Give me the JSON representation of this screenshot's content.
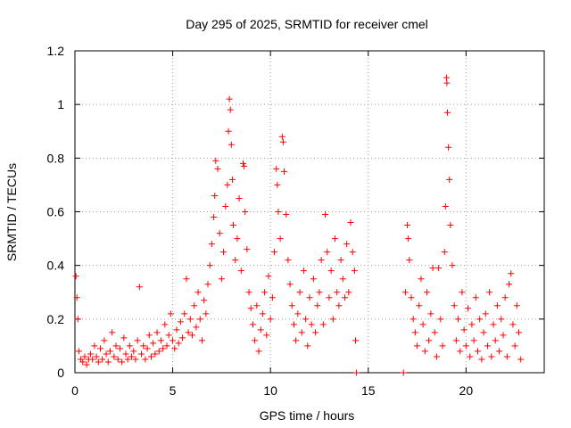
{
  "chart_data": {
    "type": "scatter",
    "title": "Day 295 of 2025, SRMTID for receiver cmel",
    "xlabel": "GPS time / hours",
    "ylabel": "SRMTID / TECUs",
    "xlim": [
      0,
      24
    ],
    "ylim": [
      0,
      1.2
    ],
    "x_ticks": [
      "0",
      "5",
      "10",
      "15",
      "20"
    ],
    "y_ticks": [
      "0",
      "0.2",
      "0.4",
      "0.6",
      "0.8",
      "1",
      "1.2"
    ],
    "grid": true,
    "marker": "+",
    "color": "#ff0000",
    "series": [
      {
        "name": "SRMTID",
        "points": [
          [
            0.05,
            0.36
          ],
          [
            0.1,
            0.28
          ],
          [
            0.15,
            0.2
          ],
          [
            0.2,
            0.08
          ],
          [
            0.3,
            0.05
          ],
          [
            0.4,
            0.04
          ],
          [
            0.5,
            0.06
          ],
          [
            0.6,
            0.03
          ],
          [
            0.7,
            0.05
          ],
          [
            0.8,
            0.07
          ],
          [
            0.9,
            0.05
          ],
          [
            1.0,
            0.1
          ],
          [
            1.1,
            0.06
          ],
          [
            1.2,
            0.04
          ],
          [
            1.3,
            0.09
          ],
          [
            1.4,
            0.05
          ],
          [
            1.5,
            0.12
          ],
          [
            1.6,
            0.07
          ],
          [
            1.7,
            0.04
          ],
          [
            1.8,
            0.08
          ],
          [
            1.9,
            0.15
          ],
          [
            2.0,
            0.06
          ],
          [
            2.1,
            0.1
          ],
          [
            2.2,
            0.05
          ],
          [
            2.3,
            0.09
          ],
          [
            2.4,
            0.04
          ],
          [
            2.5,
            0.13
          ],
          [
            2.6,
            0.07
          ],
          [
            2.7,
            0.05
          ],
          [
            2.8,
            0.1
          ],
          [
            2.9,
            0.06
          ],
          [
            3.0,
            0.08
          ],
          [
            3.1,
            0.05
          ],
          [
            3.2,
            0.12
          ],
          [
            3.3,
            0.32
          ],
          [
            3.4,
            0.07
          ],
          [
            3.5,
            0.1
          ],
          [
            3.6,
            0.05
          ],
          [
            3.7,
            0.09
          ],
          [
            3.8,
            0.14
          ],
          [
            3.9,
            0.06
          ],
          [
            4.0,
            0.11
          ],
          [
            4.1,
            0.07
          ],
          [
            4.2,
            0.15
          ],
          [
            4.3,
            0.08
          ],
          [
            4.4,
            0.12
          ],
          [
            4.5,
            0.09
          ],
          [
            4.6,
            0.18
          ],
          [
            4.7,
            0.1
          ],
          [
            4.8,
            0.14
          ],
          [
            4.9,
            0.22
          ],
          [
            5.0,
            0.12
          ],
          [
            5.1,
            0.09
          ],
          [
            5.2,
            0.16
          ],
          [
            5.3,
            0.11
          ],
          [
            5.4,
            0.19
          ],
          [
            5.5,
            0.13
          ],
          [
            5.6,
            0.22
          ],
          [
            5.7,
            0.35
          ],
          [
            5.8,
            0.15
          ],
          [
            5.9,
            0.2
          ],
          [
            6.0,
            0.14
          ],
          [
            6.1,
            0.25
          ],
          [
            6.2,
            0.17
          ],
          [
            6.3,
            0.3
          ],
          [
            6.4,
            0.2
          ],
          [
            6.5,
            0.12
          ],
          [
            6.6,
            0.27
          ],
          [
            6.7,
            0.22
          ],
          [
            6.8,
            0.33
          ],
          [
            6.9,
            0.4
          ],
          [
            7.0,
            0.48
          ],
          [
            7.1,
            0.58
          ],
          [
            7.15,
            0.66
          ],
          [
            7.2,
            0.79
          ],
          [
            7.3,
            0.76
          ],
          [
            7.4,
            0.52
          ],
          [
            7.5,
            0.35
          ],
          [
            7.6,
            0.45
          ],
          [
            7.7,
            0.62
          ],
          [
            7.8,
            0.7
          ],
          [
            7.85,
            0.9
          ],
          [
            7.9,
            1.02
          ],
          [
            7.95,
            0.98
          ],
          [
            8.0,
            0.85
          ],
          [
            8.05,
            0.72
          ],
          [
            8.1,
            0.55
          ],
          [
            8.2,
            0.42
          ],
          [
            8.3,
            0.5
          ],
          [
            8.4,
            0.65
          ],
          [
            8.5,
            0.38
          ],
          [
            8.6,
            0.78
          ],
          [
            8.65,
            0.77
          ],
          [
            8.7,
            0.6
          ],
          [
            8.8,
            0.46
          ],
          [
            8.9,
            0.3
          ],
          [
            9.0,
            0.24
          ],
          [
            9.1,
            0.18
          ],
          [
            9.2,
            0.12
          ],
          [
            9.3,
            0.25
          ],
          [
            9.4,
            0.08
          ],
          [
            9.5,
            0.16
          ],
          [
            9.6,
            0.22
          ],
          [
            9.7,
            0.3
          ],
          [
            9.8,
            0.14
          ],
          [
            9.9,
            0.36
          ],
          [
            10.0,
            0.2
          ],
          [
            10.1,
            0.28
          ],
          [
            10.2,
            0.45
          ],
          [
            10.3,
            0.76
          ],
          [
            10.35,
            0.7
          ],
          [
            10.4,
            0.6
          ],
          [
            10.5,
            0.5
          ],
          [
            10.6,
            0.88
          ],
          [
            10.65,
            0.86
          ],
          [
            10.7,
            0.75
          ],
          [
            10.8,
            0.59
          ],
          [
            10.9,
            0.42
          ],
          [
            11.0,
            0.33
          ],
          [
            11.1,
            0.25
          ],
          [
            11.2,
            0.18
          ],
          [
            11.3,
            0.12
          ],
          [
            11.4,
            0.22
          ],
          [
            11.5,
            0.3
          ],
          [
            11.6,
            0.15
          ],
          [
            11.7,
            0.38
          ],
          [
            11.8,
            0.2
          ],
          [
            11.9,
            0.1
          ],
          [
            12.0,
            0.28
          ],
          [
            12.1,
            0.18
          ],
          [
            12.2,
            0.35
          ],
          [
            12.3,
            0.15
          ],
          [
            12.4,
            0.25
          ],
          [
            12.5,
            0.3
          ],
          [
            12.6,
            0.42
          ],
          [
            12.7,
            0.18
          ],
          [
            12.8,
            0.59
          ],
          [
            12.9,
            0.45
          ],
          [
            13.0,
            0.28
          ],
          [
            13.1,
            0.38
          ],
          [
            13.2,
            0.2
          ],
          [
            13.3,
            0.5
          ],
          [
            13.4,
            0.3
          ],
          [
            13.5,
            0.25
          ],
          [
            13.6,
            0.42
          ],
          [
            13.7,
            0.35
          ],
          [
            13.8,
            0.28
          ],
          [
            13.9,
            0.48
          ],
          [
            14.0,
            0.3
          ],
          [
            14.1,
            0.56
          ],
          [
            14.2,
            0.45
          ],
          [
            14.3,
            0.38
          ],
          [
            14.35,
            0.12
          ],
          [
            14.4,
            0.0
          ],
          [
            16.8,
            0.0
          ],
          [
            16.9,
            0.3
          ],
          [
            17.0,
            0.55
          ],
          [
            17.05,
            0.5
          ],
          [
            17.1,
            0.42
          ],
          [
            17.2,
            0.28
          ],
          [
            17.3,
            0.2
          ],
          [
            17.4,
            0.15
          ],
          [
            17.5,
            0.1
          ],
          [
            17.6,
            0.25
          ],
          [
            17.7,
            0.35
          ],
          [
            17.8,
            0.18
          ],
          [
            17.9,
            0.08
          ],
          [
            18.0,
            0.3
          ],
          [
            18.1,
            0.12
          ],
          [
            18.2,
            0.22
          ],
          [
            18.3,
            0.39
          ],
          [
            18.4,
            0.15
          ],
          [
            18.5,
            0.06
          ],
          [
            18.6,
            0.39
          ],
          [
            18.7,
            0.2
          ],
          [
            18.8,
            0.1
          ],
          [
            18.9,
            0.45
          ],
          [
            18.95,
            0.62
          ],
          [
            19.0,
            1.1
          ],
          [
            19.02,
            1.08
          ],
          [
            19.05,
            0.97
          ],
          [
            19.1,
            0.84
          ],
          [
            19.15,
            0.72
          ],
          [
            19.2,
            0.55
          ],
          [
            19.3,
            0.4
          ],
          [
            19.4,
            0.25
          ],
          [
            19.5,
            0.12
          ],
          [
            19.6,
            0.2
          ],
          [
            19.7,
            0.08
          ],
          [
            19.8,
            0.3
          ],
          [
            19.9,
            0.16
          ],
          [
            20.0,
            0.1
          ],
          [
            20.1,
            0.24
          ],
          [
            20.2,
            0.06
          ],
          [
            20.3,
            0.18
          ],
          [
            20.4,
            0.12
          ],
          [
            20.5,
            0.28
          ],
          [
            20.6,
            0.08
          ],
          [
            20.7,
            0.2
          ],
          [
            20.8,
            0.05
          ],
          [
            20.9,
            0.15
          ],
          [
            21.0,
            0.22
          ],
          [
            21.1,
            0.1
          ],
          [
            21.2,
            0.3
          ],
          [
            21.3,
            0.06
          ],
          [
            21.4,
            0.18
          ],
          [
            21.5,
            0.12
          ],
          [
            21.6,
            0.25
          ],
          [
            21.7,
            0.08
          ],
          [
            21.8,
            0.2
          ],
          [
            21.9,
            0.14
          ],
          [
            22.0,
            0.28
          ],
          [
            22.1,
            0.06
          ],
          [
            22.2,
            0.33
          ],
          [
            22.3,
            0.37
          ],
          [
            22.4,
            0.18
          ],
          [
            22.5,
            0.1
          ],
          [
            22.6,
            0.25
          ],
          [
            22.7,
            0.15
          ],
          [
            22.8,
            0.05
          ]
        ]
      }
    ]
  }
}
